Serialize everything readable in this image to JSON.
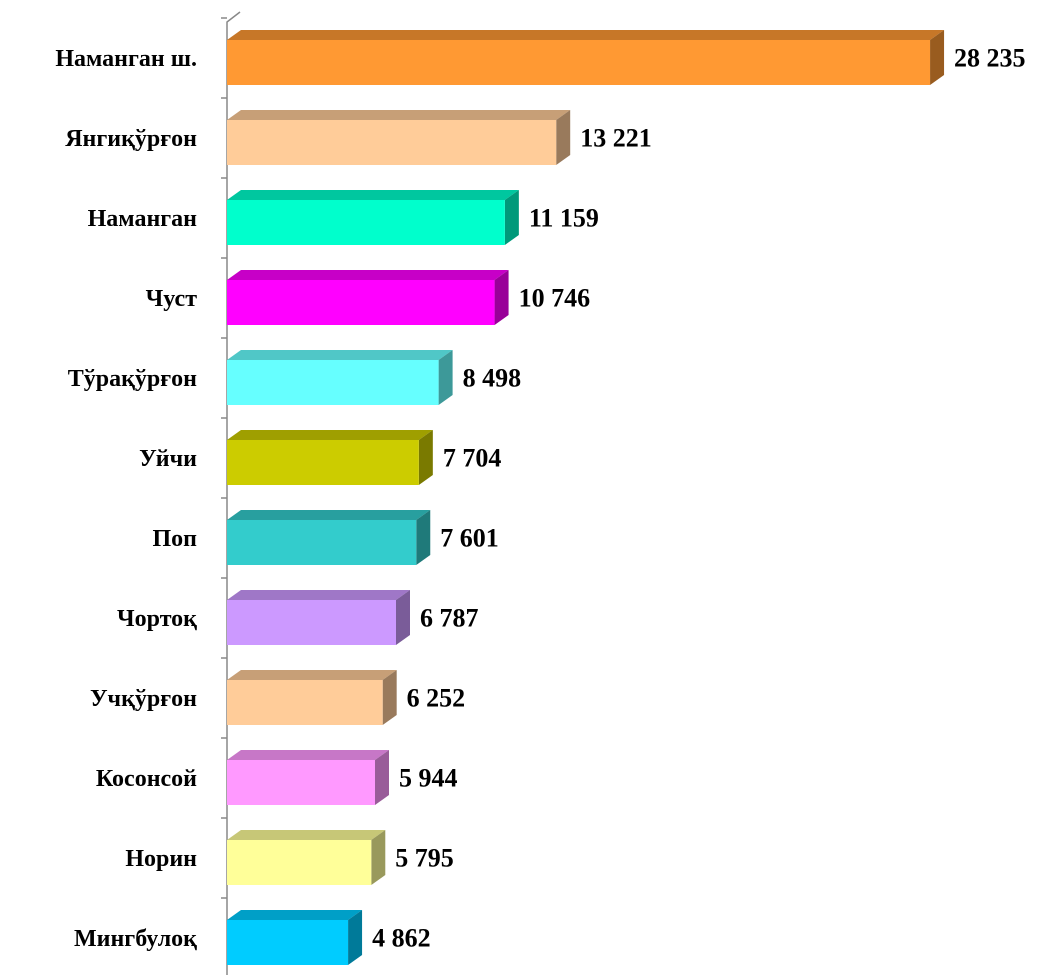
{
  "chart_data": {
    "type": "bar",
    "orientation": "horizontal",
    "categories": [
      "Наманган ш.",
      "Янгиқўрғон",
      "Наманган",
      "Чуст",
      "Тўрақўрғон",
      "Уйчи",
      "Поп",
      "Чортоқ",
      "Учқўрғон",
      "Косонсой",
      "Норин",
      "Мингбулоқ"
    ],
    "values": [
      28235,
      13221,
      11159,
      10746,
      8498,
      7704,
      7601,
      6787,
      6252,
      5944,
      5795,
      4862
    ],
    "value_labels": [
      "28 235",
      "13 221",
      "11 159",
      "10 746",
      "8 498",
      "7 704",
      "7 601",
      "6 787",
      "6 252",
      "5 944",
      "5 795",
      "4 862"
    ],
    "colors": [
      "#FF9933",
      "#FFCC99",
      "#00FFCC",
      "#FF00FF",
      "#66FFFF",
      "#CCCC00",
      "#33CCCC",
      "#CC99FF",
      "#FFCC99",
      "#FF99FF",
      "#FFFF99",
      "#00CCFF"
    ],
    "xlim": [
      0,
      30000
    ]
  }
}
